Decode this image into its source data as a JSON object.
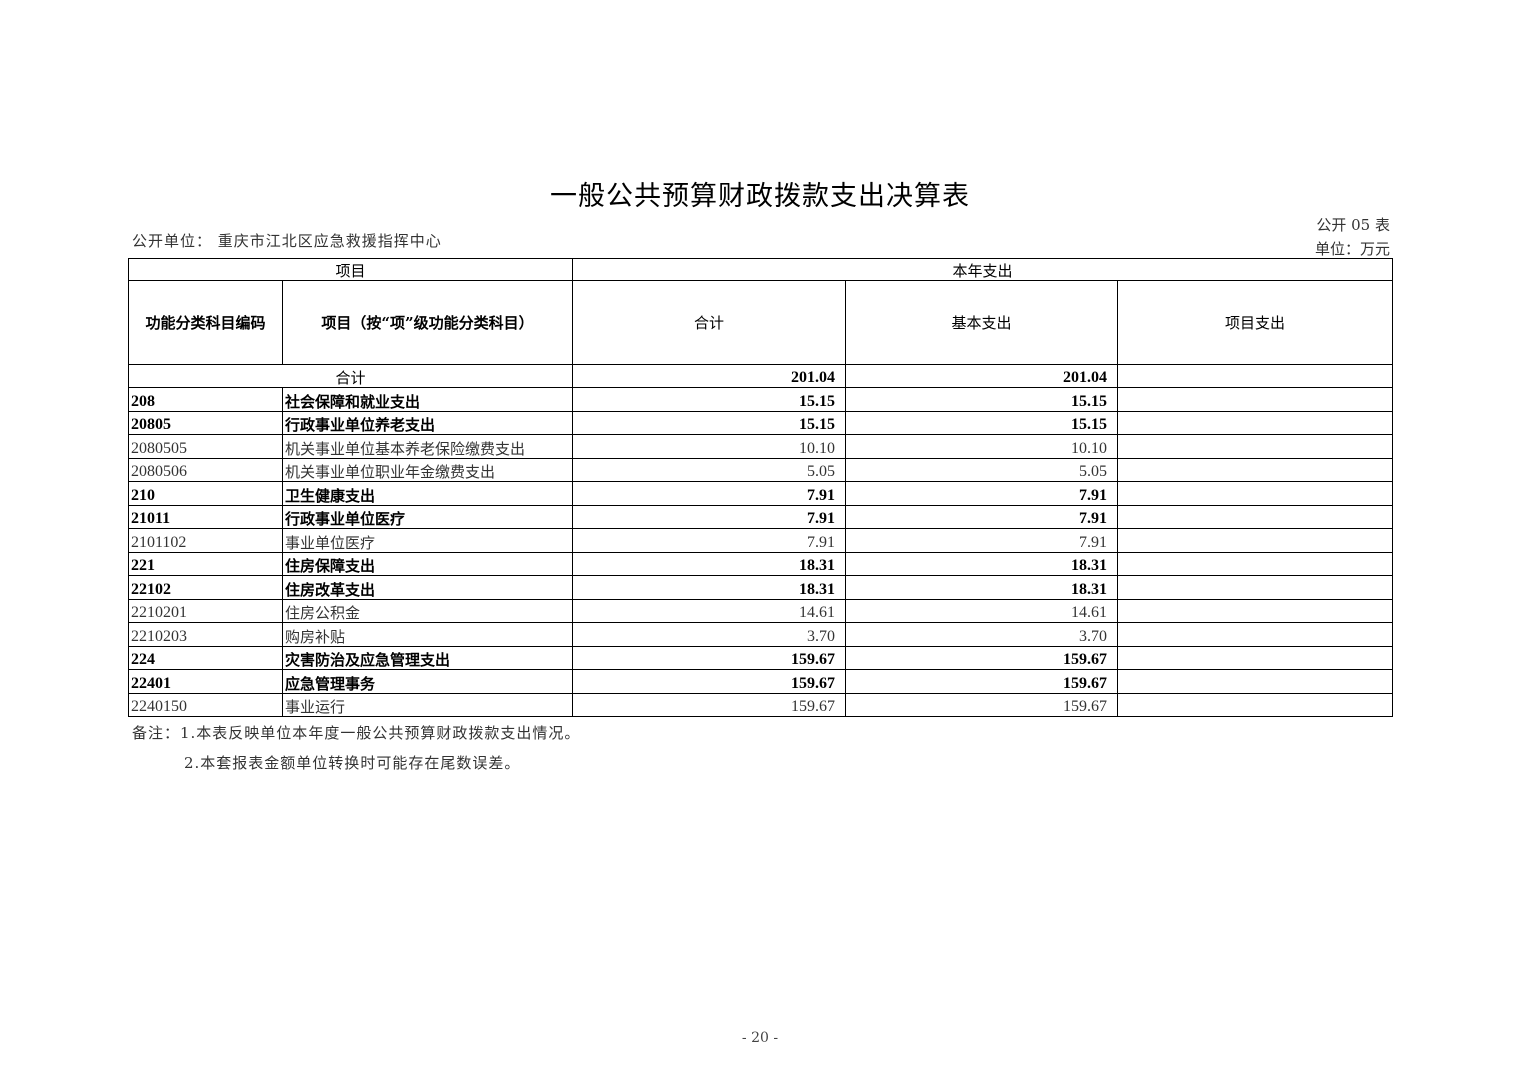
{
  "title": "一般公共预算财政拨款支出决算表",
  "unit_label": "公开单位：  重庆市江北区应急救援指挥中心",
  "table_no": "公开 05 表",
  "currency": "单位：万元",
  "headers": {
    "item": "项目",
    "current_year": "本年支出",
    "code": "功能分类科目编码",
    "name": "项目（按“项”级功能分类科目）",
    "total": "合计",
    "basic": "基本支出",
    "project": "项目支出"
  },
  "total_row": {
    "label": "合计",
    "total": "201.04",
    "basic": "201.04",
    "project": ""
  },
  "rows": [
    {
      "code": "208",
      "name": "社会保障和就业支出",
      "total": "15.15",
      "basic": "15.15",
      "project": "",
      "bold": true
    },
    {
      "code": "20805",
      "name": "行政事业单位养老支出",
      "total": "15.15",
      "basic": "15.15",
      "project": "",
      "bold": true
    },
    {
      "code": "2080505",
      "name": "机关事业单位基本养老保险缴费支出",
      "total": "10.10",
      "basic": "10.10",
      "project": "",
      "bold": false
    },
    {
      "code": "2080506",
      "name": "机关事业单位职业年金缴费支出",
      "total": "5.05",
      "basic": "5.05",
      "project": "",
      "bold": false
    },
    {
      "code": "210",
      "name": "卫生健康支出",
      "total": "7.91",
      "basic": "7.91",
      "project": "",
      "bold": true
    },
    {
      "code": "21011",
      "name": "行政事业单位医疗",
      "total": "7.91",
      "basic": "7.91",
      "project": "",
      "bold": true
    },
    {
      "code": "2101102",
      "name": "事业单位医疗",
      "total": "7.91",
      "basic": "7.91",
      "project": "",
      "bold": false
    },
    {
      "code": "221",
      "name": "住房保障支出",
      "total": "18.31",
      "basic": "18.31",
      "project": "",
      "bold": true
    },
    {
      "code": "22102",
      "name": "住房改革支出",
      "total": "18.31",
      "basic": "18.31",
      "project": "",
      "bold": true
    },
    {
      "code": "2210201",
      "name": "住房公积金",
      "total": "14.61",
      "basic": "14.61",
      "project": "",
      "bold": false
    },
    {
      "code": "2210203",
      "name": "购房补贴",
      "total": "3.70",
      "basic": "3.70",
      "project": "",
      "bold": false
    },
    {
      "code": "224",
      "name": "灾害防治及应急管理支出",
      "total": "159.67",
      "basic": "159.67",
      "project": "",
      "bold": true
    },
    {
      "code": "22401",
      "name": "应急管理事务",
      "total": "159.67",
      "basic": "159.67",
      "project": "",
      "bold": true
    },
    {
      "code": "2240150",
      "name": "事业运行",
      "total": "159.67",
      "basic": "159.67",
      "project": "",
      "bold": false
    }
  ],
  "notes": [
    "备注：1.本表反映单位本年度一般公共预算财政拨款支出情况。",
    "2.本套报表金额单位转换时可能存在尾数误差。"
  ],
  "page_number": "- 20 -"
}
